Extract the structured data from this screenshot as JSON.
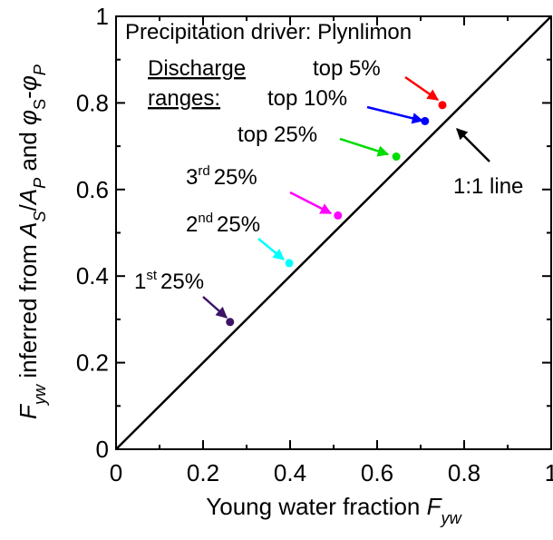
{
  "chart_data": {
    "type": "scatter",
    "annotation_title": "Precipitation driver: Plynlimon",
    "annotation_heading": [
      "Discharge",
      "ranges:"
    ],
    "xlabel": [
      {
        "text": "Young water fraction "
      },
      {
        "text": "F",
        "italic": true
      },
      {
        "text": "yw",
        "italic": true,
        "sub": true
      }
    ],
    "ylabel": [
      {
        "text": "F",
        "italic": true
      },
      {
        "text": "yw",
        "italic": true,
        "sub": true
      },
      {
        "text": " inferred from "
      },
      {
        "text": "A",
        "italic": true
      },
      {
        "text": "S",
        "italic": true,
        "sub": true
      },
      {
        "text": "/"
      },
      {
        "text": "A",
        "italic": true
      },
      {
        "text": "P",
        "italic": true,
        "sub": true
      },
      {
        "text": " and "
      },
      {
        "text": "φ",
        "italic": true
      },
      {
        "text": "S",
        "sub": true
      },
      {
        "text": "-"
      },
      {
        "text": "φ",
        "italic": true
      },
      {
        "text": "P",
        "italic": true,
        "sub": true
      }
    ],
    "xlim": [
      0,
      1
    ],
    "ylim": [
      0,
      1
    ],
    "xticks": [
      0,
      0.2,
      0.4,
      0.6,
      0.8,
      1
    ],
    "yticks": [
      0,
      0.2,
      0.4,
      0.6,
      0.8,
      1
    ],
    "minor_ticks": [
      0.1,
      0.3,
      0.5,
      0.7,
      0.9
    ],
    "reference_line": {
      "x": [
        0,
        1
      ],
      "y": [
        0,
        1
      ],
      "label": "1:1 line",
      "color": "#000000"
    },
    "series": [
      {
        "label": {
          "main": "1",
          "sup": "st",
          "tail": "25%"
        },
        "color": "#3d1466",
        "x": [
          0.262
        ],
        "values": [
          0.294
        ]
      },
      {
        "label": {
          "main": "2",
          "sup": "nd",
          "tail": "25%"
        },
        "color": "#00ffff",
        "x": [
          0.398
        ],
        "values": [
          0.43
        ]
      },
      {
        "label": {
          "main": "3",
          "sup": "rd",
          "tail": "25%"
        },
        "color": "#ff00ff",
        "x": [
          0.51
        ],
        "values": [
          0.54
        ]
      },
      {
        "label": {
          "main": "top 25%"
        },
        "color": "#00dd00",
        "x": [
          0.644
        ],
        "values": [
          0.676
        ]
      },
      {
        "label": {
          "main": "top 10%"
        },
        "color": "#0000ff",
        "x": [
          0.71
        ],
        "values": [
          0.758
        ]
      },
      {
        "label": {
          "main": "top 5%"
        },
        "color": "#ff0000",
        "x": [
          0.75
        ],
        "values": [
          0.795
        ]
      }
    ]
  }
}
